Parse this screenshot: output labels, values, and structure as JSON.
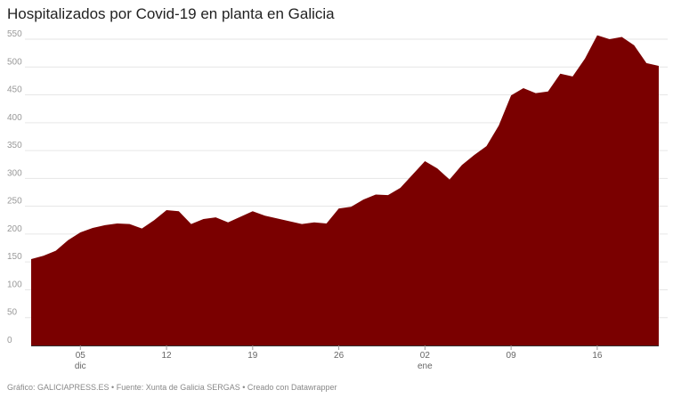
{
  "title": "Hospitalizados por Covid-19 en planta en Galicia",
  "footer": "Gráfico: GALICIAPRESS.ES • Fuente: Xunta de Galicia SERGAS • Creado con Datawrapper",
  "chart_data": {
    "type": "area",
    "title": "Hospitalizados por Covid-19 en planta en Galicia",
    "xlabel": "",
    "ylabel": "",
    "ylim": [
      0,
      550
    ],
    "yticks": [
      0,
      50,
      100,
      150,
      200,
      250,
      300,
      350,
      400,
      450,
      500,
      550
    ],
    "xticks": [
      {
        "index": 4,
        "label": "05",
        "sublabel": "dic"
      },
      {
        "index": 11,
        "label": "12",
        "sublabel": ""
      },
      {
        "index": 18,
        "label": "19",
        "sublabel": ""
      },
      {
        "index": 25,
        "label": "26",
        "sublabel": ""
      },
      {
        "index": 32,
        "label": "02",
        "sublabel": "ene"
      },
      {
        "index": 39,
        "label": "09",
        "sublabel": ""
      },
      {
        "index": 46,
        "label": "16",
        "sublabel": ""
      }
    ],
    "grid": true,
    "color": "#7a0000",
    "series": [
      {
        "values": [
          155,
          161,
          170,
          189,
          203,
          211,
          216,
          219,
          218,
          210,
          225,
          243,
          241,
          218,
          227,
          230,
          221,
          231,
          241,
          233,
          228,
          223,
          218,
          221,
          219,
          246,
          249,
          262,
          271,
          270,
          283,
          307,
          331,
          318,
          298,
          324,
          342,
          358,
          395,
          449,
          462,
          453,
          456,
          488,
          483,
          515,
          557,
          550,
          554,
          539,
          507,
          502
        ]
      }
    ]
  }
}
